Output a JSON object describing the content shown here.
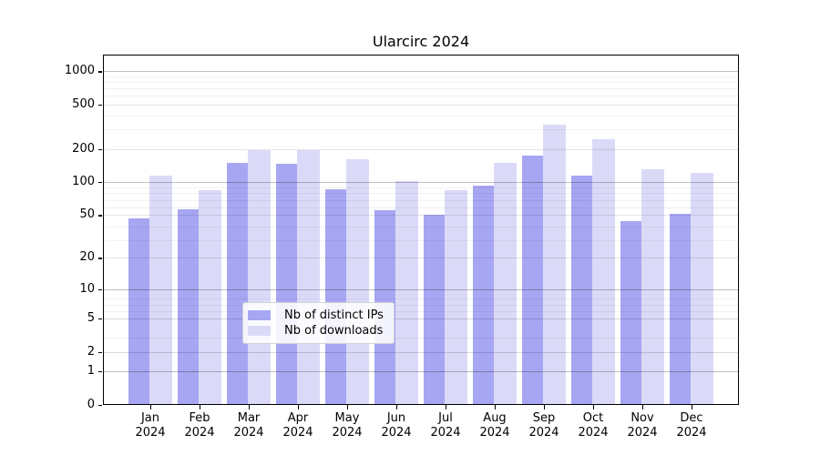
{
  "chart_data": {
    "type": "bar",
    "title": "Ularcirc 2024",
    "xlabel": "",
    "ylabel": "",
    "scale": "log10(value+1)",
    "ylim": [
      0,
      1413
    ],
    "grid": true,
    "legend_position": "lower center",
    "categories": [
      "Jan",
      "Feb",
      "Mar",
      "Apr",
      "May",
      "Jun",
      "Jul",
      "Aug",
      "Sep",
      "Oct",
      "Nov",
      "Dec"
    ],
    "x_year_label": "2024",
    "yticks": [
      1000,
      500,
      200,
      100,
      50,
      20,
      10,
      5,
      2,
      1,
      0
    ],
    "emphasized_gridlines": [
      1000,
      100,
      10,
      1
    ],
    "light_gridlines": [
      500,
      200,
      50,
      20,
      5,
      2
    ],
    "minor_gridlines_plus1": [
      3,
      4,
      6,
      7,
      8,
      9,
      30,
      40,
      60,
      70,
      80,
      90,
      300,
      400,
      600,
      700,
      800,
      900
    ],
    "series": [
      {
        "name": "Nb of distinct IPs",
        "color": "#a6a6f2",
        "values": [
          47,
          57,
          148,
          146,
          86,
          55,
          50,
          93,
          174,
          114,
          44,
          51
        ]
      },
      {
        "name": "Nb of downloads",
        "color": "#dadaf8",
        "values": [
          114,
          84,
          196,
          196,
          161,
          103,
          85,
          148,
          330,
          244,
          131,
          121
        ]
      }
    ]
  }
}
